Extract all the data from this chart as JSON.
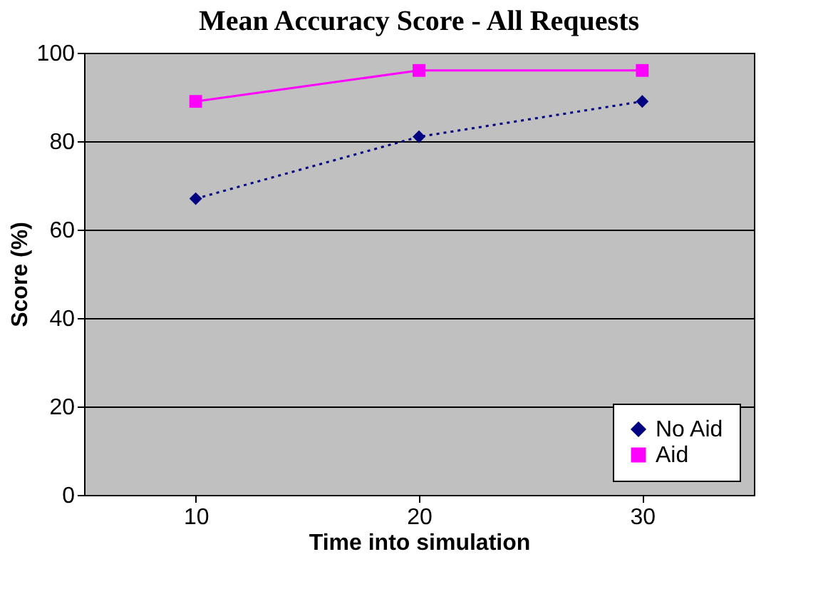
{
  "chart_data": {
    "type": "line",
    "title": "Mean Accuracy Score - All Requests",
    "xlabel": "Time into simulation",
    "ylabel": "Score (%)",
    "categories": [
      "10",
      "20",
      "30"
    ],
    "series": [
      {
        "name": "No Aid",
        "color": "#000080",
        "values": [
          67,
          81,
          89
        ],
        "marker": "diamond",
        "line_style": "dotted"
      },
      {
        "name": "Aid",
        "color": "#ff00ff",
        "values": [
          89,
          96,
          96
        ],
        "marker": "square",
        "line_style": "solid"
      }
    ],
    "ylim": [
      0,
      100
    ],
    "yticks": [
      0,
      20,
      40,
      60,
      80,
      100
    ],
    "grid": "y",
    "legend": "bottom right"
  }
}
